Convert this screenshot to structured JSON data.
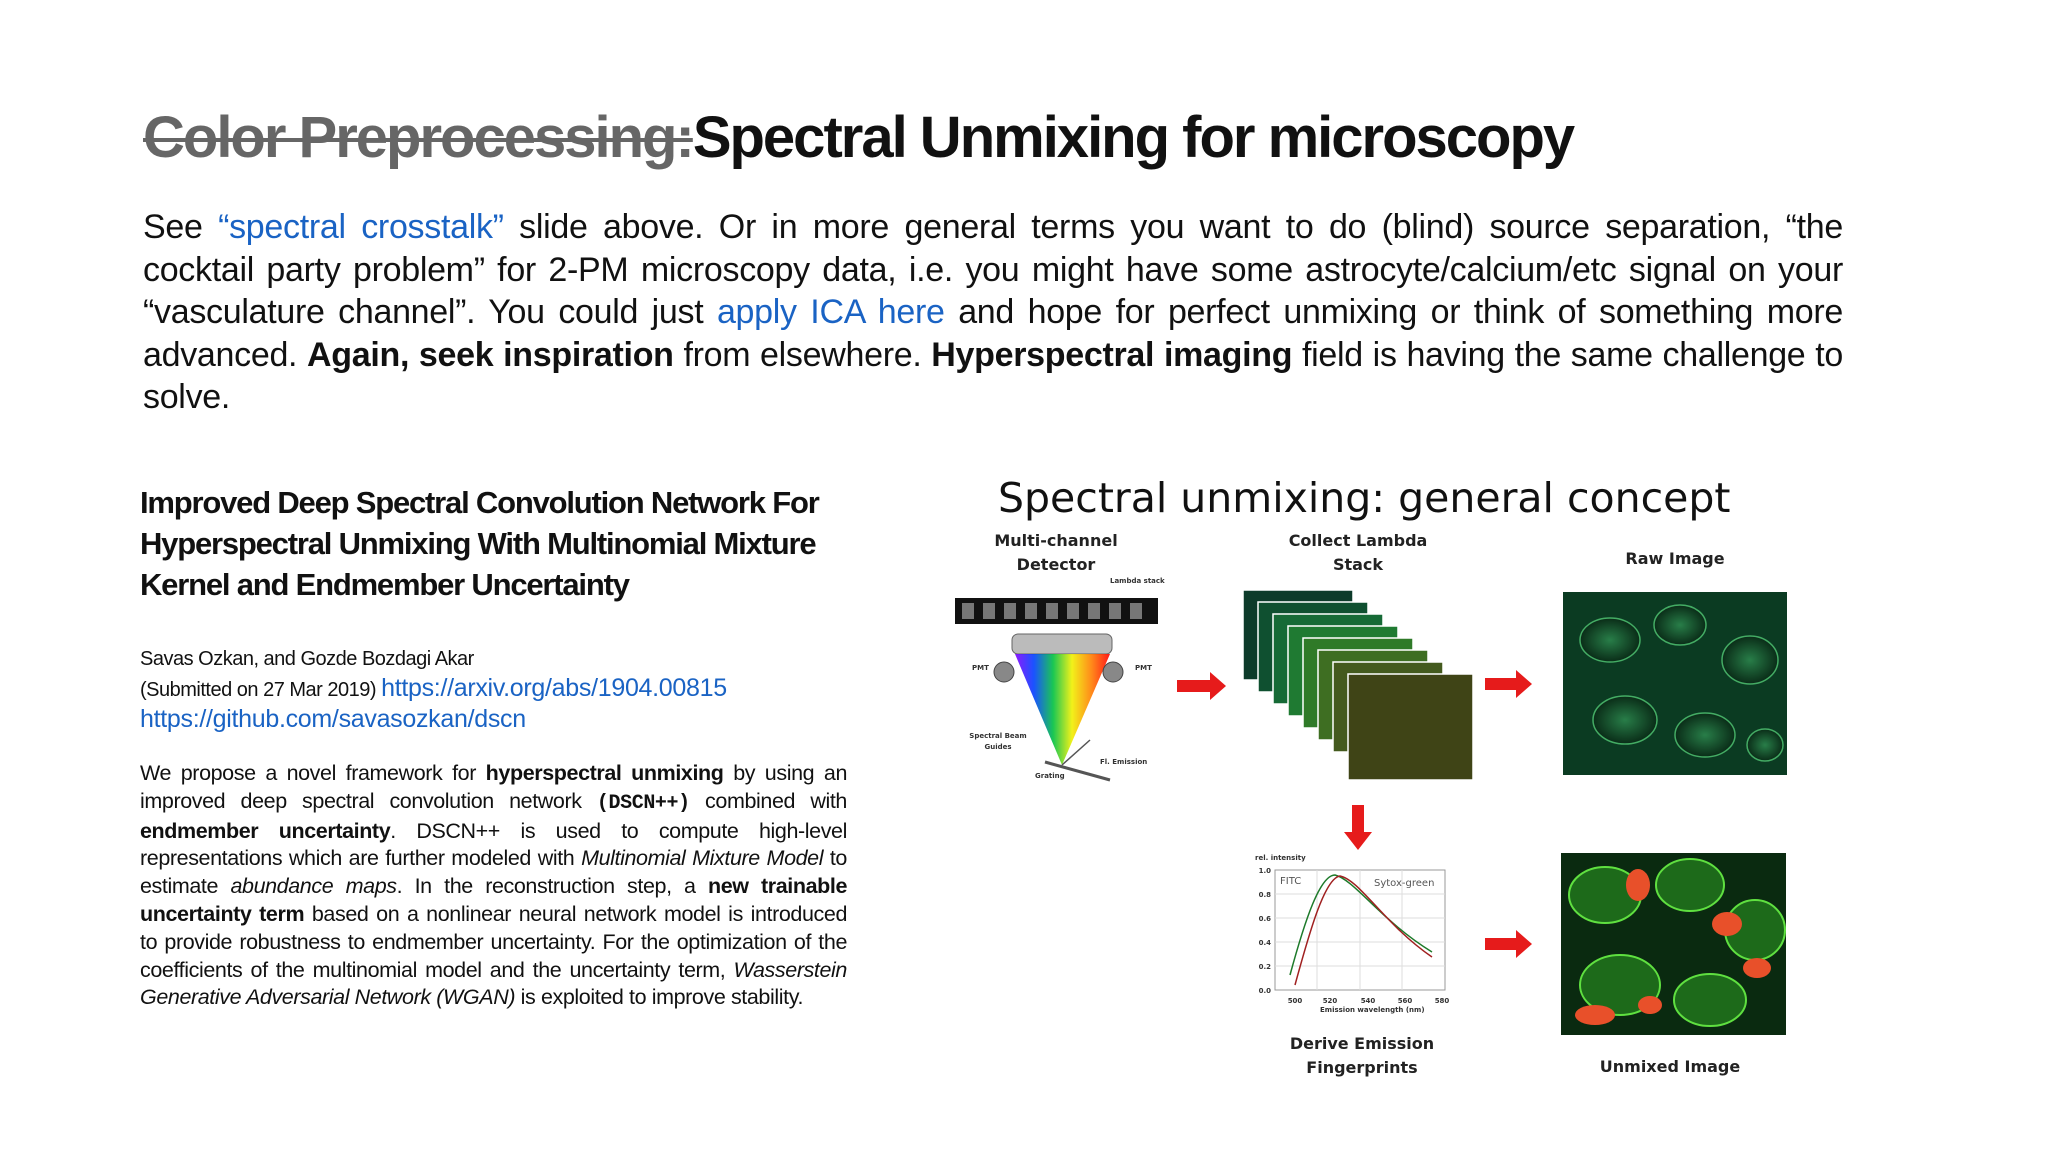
{
  "title": {
    "struck": "Color Preprocessing:",
    "main": "Spectral Unmixing for microscopy"
  },
  "intro": {
    "parts": [
      "See ",
      "“spectral crosstalk”",
      " slide above. Or in more general terms you want to do (blind) source separation, “the cocktail party problem” for 2-PM microscopy data, i.e. you might have some astrocyte/calcium/etc signal on your “vasculature channel”. You could just ",
      "apply ICA here",
      " and hope for perfect unmixing or think of something more advanced. ",
      "Again, seek inspiration",
      " from elsewhere. ",
      "Hyperspectral imaging",
      " field is having the same challenge to solve."
    ]
  },
  "paper": {
    "title": "Improved Deep Spectral Convolution Network For Hyperspectral Unmixing With Multinomial Mixture Kernel and Endmember Uncertainty",
    "authors": "Savas Ozkan, and Gozde Bozdagi Akar",
    "submitted": "(Submitted on 27 Mar 2019)",
    "arxiv": "https://arxiv.org/abs/1904.00815",
    "github": "https://github.com/savasozkan/dscn",
    "abstract": [
      "We propose a novel framework for ",
      "hyperspectral unmixing",
      " by using an improved deep spectral convolution network ",
      "(DSCN++)",
      " combined with ",
      "endmember uncertainty",
      ". DSCN++ is used to compute high-level representations which are further modeled with ",
      "Multinomial Mixture Model",
      " to estimate ",
      "abundance maps",
      ". In the reconstruction step, a ",
      "new trainable uncertainty term",
      " based on a nonlinear neural network model is introduced to provide robustness to endmember uncertainty. For the optimization of the coefficients of the multinomial model and the uncertainty term, ",
      "Wasserstein Generative Adversarial Network (WGAN)",
      " is exploited to improve stability."
    ]
  },
  "figure": {
    "title": "Spectral unmixing: general concept",
    "detector": [
      "Multi-channel",
      "Detector"
    ],
    "stack": [
      "Collect Lambda",
      "Stack"
    ],
    "raw": "Raw Image",
    "emission": [
      "Derive Emission",
      "Fingerprints"
    ],
    "unmixed": "Unmixed Image",
    "small": {
      "lambda_stack": "Lambda stack",
      "pmt_left": "PMT",
      "pmt_right": "PMT",
      "beam": [
        "Spectral Beam",
        "Guides"
      ],
      "grating": "Grating",
      "fl_emission": "Fl. Emission"
    },
    "spectrum": {
      "ylabel": "rel. intensity",
      "xlabel": "Emission wavelength (nm)",
      "curve1": "FITC",
      "curve2": "Sytox-green",
      "yticks": [
        "1.0",
        "0.8",
        "0.6",
        "0.4",
        "0.2",
        "0.0"
      ],
      "xticks": [
        "500",
        "520",
        "540",
        "560",
        "580"
      ]
    }
  }
}
